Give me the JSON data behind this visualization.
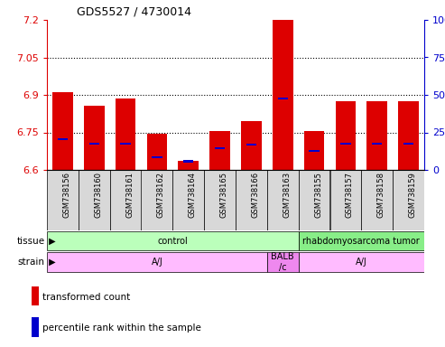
{
  "title": "GDS5527 / 4730014",
  "samples": [
    "GSM738156",
    "GSM738160",
    "GSM738161",
    "GSM738162",
    "GSM738164",
    "GSM738165",
    "GSM738166",
    "GSM738163",
    "GSM738155",
    "GSM738157",
    "GSM738158",
    "GSM738159"
  ],
  "transformed_counts": [
    6.91,
    6.855,
    6.885,
    6.745,
    6.635,
    6.755,
    6.795,
    7.2,
    6.755,
    6.875,
    6.875,
    6.875
  ],
  "percentile_ranks": [
    20,
    17,
    17,
    8,
    5,
    14,
    16,
    47,
    12,
    17,
    17,
    17
  ],
  "ymin": 6.6,
  "ymax": 7.2,
  "yticks": [
    6.6,
    6.75,
    6.9,
    7.05,
    7.2
  ],
  "right_yticks": [
    0,
    25,
    50,
    75,
    100
  ],
  "bar_color": "#dd0000",
  "percentile_color": "#0000cc",
  "grid_lines": [
    6.75,
    6.9,
    7.05
  ],
  "tissue_groups": [
    {
      "label": "control",
      "start": 0,
      "end": 8,
      "color": "#bbffbb"
    },
    {
      "label": "rhabdomyosarcoma tumor",
      "start": 8,
      "end": 12,
      "color": "#88ee88"
    }
  ],
  "strain_groups": [
    {
      "label": "A/J",
      "start": 0,
      "end": 7,
      "color": "#ffbbff"
    },
    {
      "label": "BALB\n/c",
      "start": 7,
      "end": 8,
      "color": "#ee88ee"
    },
    {
      "label": "A/J",
      "start": 8,
      "end": 12,
      "color": "#ffbbff"
    }
  ],
  "tissue_label": "tissue",
  "strain_label": "strain",
  "sample_bg_color": "#d8d8d8",
  "legend_items": [
    {
      "label": "transformed count",
      "color": "#dd0000"
    },
    {
      "label": "percentile rank within the sample",
      "color": "#0000cc"
    }
  ]
}
